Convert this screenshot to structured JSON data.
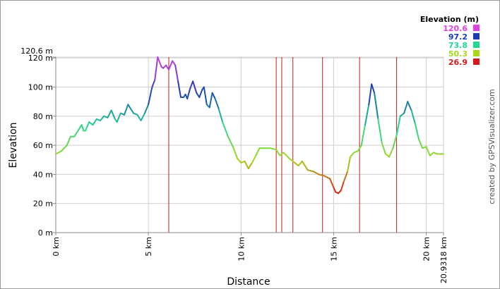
{
  "chart_data": {
    "type": "line",
    "title": "",
    "xlabel": "Distance",
    "ylabel": "Elevation",
    "xlim": [
      0,
      20.9318
    ],
    "ylim": [
      0,
      120.6
    ],
    "x_ticks": [
      {
        "value": 0,
        "label": "0 km"
      },
      {
        "value": 5,
        "label": "5 km"
      },
      {
        "value": 10,
        "label": "10 km"
      },
      {
        "value": 15,
        "label": "15 km"
      },
      {
        "value": 20,
        "label": "20 km"
      },
      {
        "value": 20.9318,
        "label": "20.9318 km"
      }
    ],
    "y_ticks": [
      {
        "value": 0,
        "label": "0 m"
      },
      {
        "value": 20,
        "label": "20 m"
      },
      {
        "value": 40,
        "label": "40 m"
      },
      {
        "value": 60,
        "label": "60 m"
      },
      {
        "value": 80,
        "label": "80 m"
      },
      {
        "value": 100,
        "label": "100 m"
      },
      {
        "value": 120,
        "label": "120 m"
      },
      {
        "value": 120.6,
        "label": "120.6 m"
      }
    ],
    "grid": true,
    "legend": {
      "title": "Elevation (m)",
      "placement": "top-right",
      "entries": [
        {
          "label": "120.6",
          "value": 120.6,
          "color": "#e040e0"
        },
        {
          "label": "97.2",
          "value": 97.2,
          "color": "#1a3cb4"
        },
        {
          "label": "73.8",
          "value": 73.8,
          "color": "#22d890"
        },
        {
          "label": "50.3",
          "value": 50.3,
          "color": "#a8d818"
        },
        {
          "label": "26.9",
          "value": 26.9,
          "color": "#d81818"
        }
      ]
    },
    "markers_km": [
      6.1,
      11.9,
      12.2,
      12.8,
      14.4,
      16.4,
      18.4
    ],
    "marker_color": "#c02020",
    "series": [
      {
        "x": [
          0,
          0.3,
          0.6,
          0.8,
          1.0,
          1.2,
          1.4,
          1.5,
          1.6,
          1.8,
          2.0,
          2.2,
          2.4,
          2.6,
          2.8,
          3.0,
          3.2,
          3.3,
          3.5,
          3.7,
          3.9,
          4.1,
          4.2,
          4.4,
          4.6,
          4.8,
          5.0,
          5.2,
          5.35,
          5.5,
          5.7,
          5.8,
          5.95,
          6.1,
          6.3,
          6.45,
          6.6,
          6.75,
          6.9,
          7.0,
          7.1,
          7.25,
          7.4,
          7.6,
          7.75,
          7.9,
          8.0,
          8.15,
          8.3,
          8.45,
          8.6,
          8.8,
          9.0,
          9.3,
          9.6,
          9.8,
          10.0,
          10.2,
          10.4,
          10.6,
          10.8,
          11.0,
          11.3,
          11.6,
          11.9,
          12.1,
          12.3,
          12.6,
          12.9,
          13.1,
          13.3,
          13.6,
          13.9,
          14.2,
          14.5,
          14.8,
          15.0,
          15.1,
          15.25,
          15.4,
          15.55,
          15.75,
          15.9,
          16.1,
          16.3,
          16.5,
          16.7,
          16.9,
          17.05,
          17.2,
          17.4,
          17.6,
          17.8,
          18.0,
          18.2,
          18.4,
          18.6,
          18.8,
          19.0,
          19.2,
          19.4,
          19.6,
          19.8,
          20.0,
          20.2,
          20.4,
          20.6,
          20.9318
        ],
        "y": [
          54,
          56,
          60,
          66,
          66,
          70,
          74,
          70,
          70,
          76,
          74,
          78,
          77,
          80,
          79,
          84,
          78,
          76,
          82,
          81,
          88,
          84,
          82,
          81,
          77,
          82,
          88,
          100,
          105,
          120.6,
          114,
          113,
          115,
          112,
          118,
          115,
          104,
          93,
          93,
          95,
          92,
          99,
          104,
          96,
          93,
          98,
          100,
          88,
          86,
          96,
          92,
          85,
          76,
          66,
          58,
          51,
          48,
          49,
          44,
          48,
          53,
          58,
          58,
          58,
          57,
          53,
          55,
          51,
          48,
          46,
          49,
          43,
          42,
          40,
          39,
          37,
          31,
          28,
          27,
          29,
          35,
          42,
          52,
          55,
          56,
          60,
          74,
          88,
          102,
          96,
          78,
          62,
          54,
          52,
          58,
          67,
          80,
          82,
          90,
          84,
          75,
          64,
          58,
          59,
          53,
          55,
          54,
          54
        ]
      }
    ]
  },
  "credit": "created by GPSVisualizer.com"
}
